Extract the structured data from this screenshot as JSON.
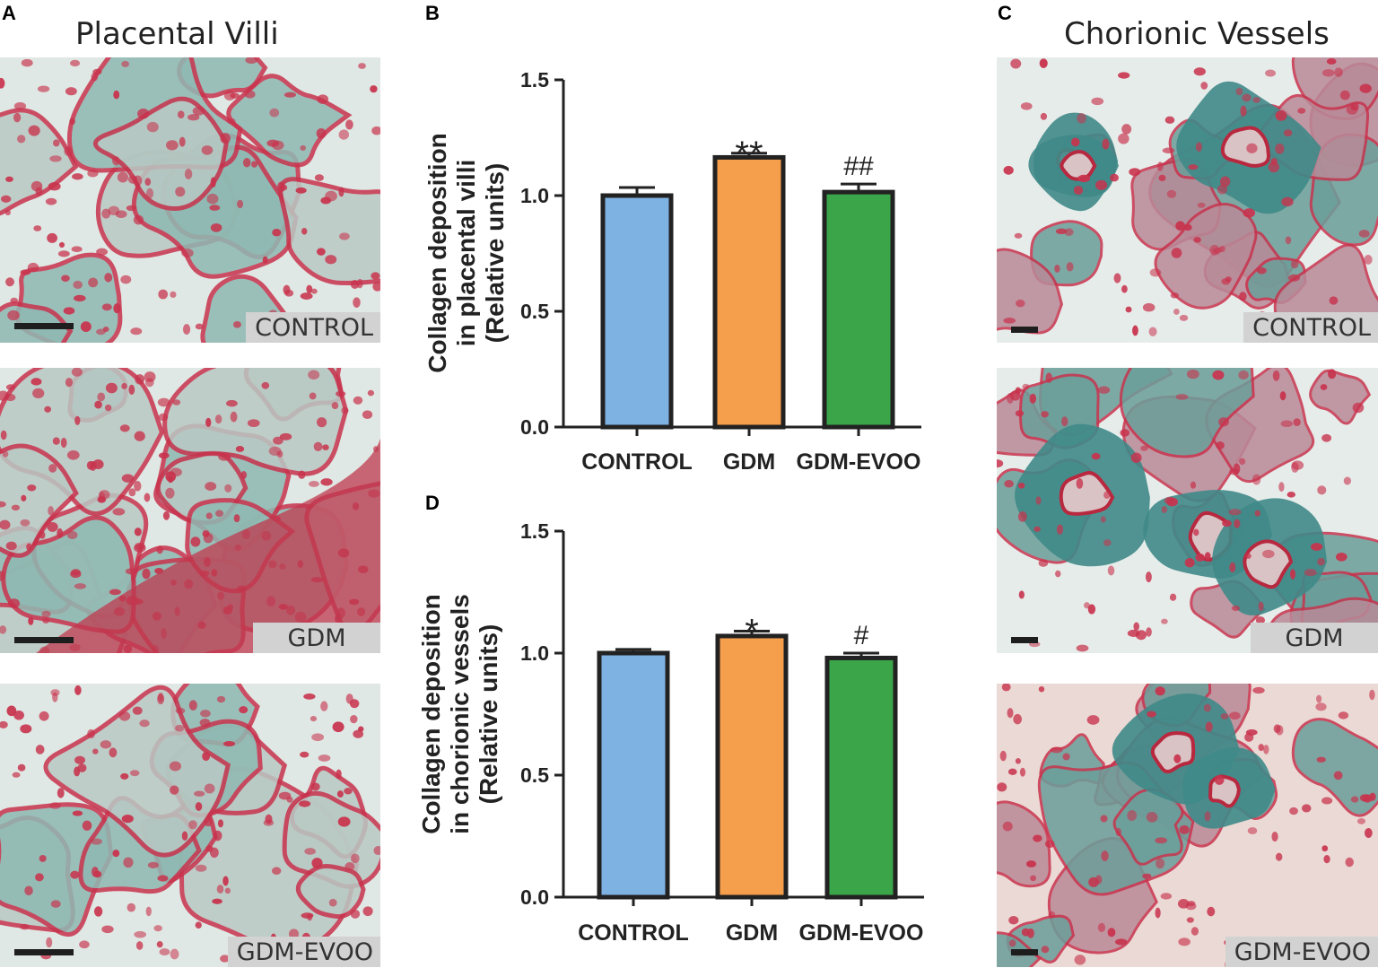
{
  "panels": {
    "a": {
      "letter": "A",
      "title": "Placental Villi"
    },
    "b": {
      "letter": "B"
    },
    "c": {
      "letter": "C",
      "title": "Chorionic Vessels"
    },
    "d": {
      "letter": "D"
    }
  },
  "micrographs": {
    "villi": [
      {
        "label": "CONTROL",
        "tissue": "villi-control"
      },
      {
        "label": "GDM",
        "tissue": "villi-gdm"
      },
      {
        "label": "GDM-EVOO",
        "tissue": "villi-evoo"
      }
    ],
    "vessels": [
      {
        "label": "CONTROL",
        "tissue": "vessel-control"
      },
      {
        "label": "GDM",
        "tissue": "vessel-gdm"
      },
      {
        "label": "GDM-EVOO",
        "tissue": "vessel-evoo"
      }
    ]
  },
  "colors": {
    "control": "#7eb2e2",
    "gdm": "#f59e4b",
    "gdm_evoo": "#3aa649",
    "bar_outline": "#222222",
    "stain_red": "#c8334d",
    "stain_green": "#5f9d96",
    "background_tissue": "#dfe8e4"
  },
  "chart_data": [
    {
      "panel": "B",
      "type": "bar",
      "categories": [
        "CONTROL",
        "GDM",
        "GDM-EVOO"
      ],
      "values": [
        1.0,
        1.165,
        1.015
      ],
      "errors": [
        0.035,
        0.018,
        0.035
      ],
      "significance": [
        "",
        "**",
        "##"
      ],
      "ylabel_lines": [
        "Collagen deposition",
        "in placental villi",
        "(Relative units)"
      ],
      "ylim": [
        0,
        1.5
      ],
      "yticks": [
        "0.0",
        "0.5",
        "1.0",
        "1.5"
      ],
      "ytick_values": [
        0,
        0.5,
        1.0,
        1.5
      ]
    },
    {
      "panel": "D",
      "type": "bar",
      "categories": [
        "CONTROL",
        "GDM",
        "GDM-EVOO"
      ],
      "values": [
        1.0,
        1.07,
        0.98
      ],
      "errors": [
        0.015,
        0.02,
        0.02
      ],
      "significance": [
        "",
        "*",
        "#"
      ],
      "ylabel_lines": [
        "Collagen deposition",
        "in chorionic vessels",
        "(Relative units)"
      ],
      "ylim": [
        0,
        1.5
      ],
      "yticks": [
        "0.0",
        "0.5",
        "1.0",
        "1.5"
      ],
      "ytick_values": [
        0,
        0.5,
        1.0,
        1.5
      ]
    }
  ]
}
